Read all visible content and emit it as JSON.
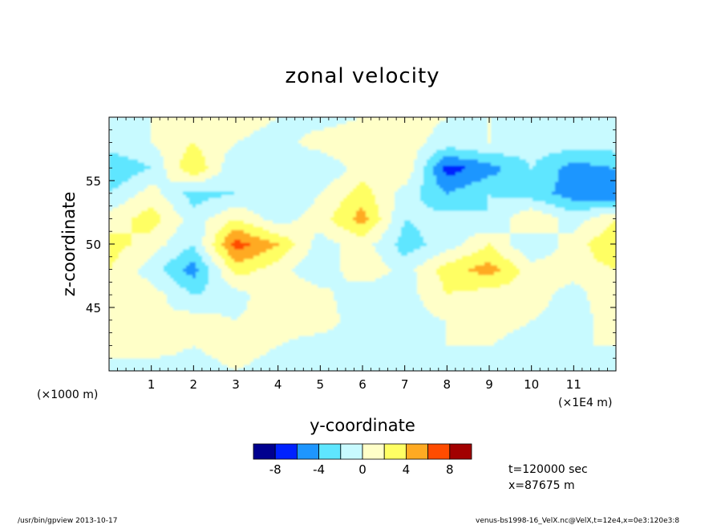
{
  "chart_data": {
    "type": "heatmap",
    "title": "zonal velocity",
    "xlabel": "y-coordinate",
    "ylabel": "z-coordinate",
    "x_unit_note": "(×1E4 m)",
    "y_unit_note": "(×1000 m)",
    "xlim": [
      0,
      12
    ],
    "ylim": [
      40,
      60
    ],
    "x_ticks": [
      1,
      2,
      3,
      4,
      5,
      6,
      7,
      8,
      9,
      10,
      11
    ],
    "y_ticks": [
      45,
      50,
      55
    ],
    "grid": false,
    "colorbar": {
      "levels": [
        -10,
        -8,
        -6,
        -4,
        -2,
        0,
        2,
        4,
        6,
        8,
        10
      ],
      "colors": [
        "#00008f",
        "#0022ff",
        "#1e96ff",
        "#5fe6ff",
        "#c8faff",
        "#ffffc8",
        "#ffff64",
        "#ffaa22",
        "#ff4c00",
        "#a20000"
      ],
      "tick_labels": [
        "-8",
        "-4",
        "0",
        "4",
        "8"
      ],
      "tick_values": [
        -8,
        -4,
        0,
        4,
        8
      ]
    },
    "field": {
      "description_note": "",
      "nx": 13,
      "nz": 11,
      "y_values_1e4m": [
        0,
        1,
        2,
        3,
        4,
        5,
        6,
        7,
        8,
        9,
        10,
        11,
        12
      ],
      "z_values_1000m": [
        40,
        42,
        44,
        46,
        48,
        50,
        52,
        54,
        56,
        58,
        60
      ],
      "values": [
        [
          0,
          -1,
          -1,
          0,
          -1,
          -1,
          -1,
          -1,
          -1,
          -1,
          -1,
          -1,
          0
        ],
        [
          0,
          1,
          0,
          1,
          0,
          -1,
          -1,
          -1,
          0,
          0,
          -1,
          0,
          0
        ],
        [
          1,
          0,
          1,
          0,
          1,
          1,
          -1,
          -1,
          0,
          1,
          0,
          -1,
          1
        ],
        [
          1,
          1,
          -2,
          -1,
          2,
          1,
          -2,
          -1,
          2,
          1,
          1,
          -1,
          2
        ],
        [
          2,
          -1,
          -5,
          3,
          1,
          -2,
          2,
          -1,
          3,
          5,
          1,
          1,
          2
        ],
        [
          3,
          1,
          -2,
          7,
          4,
          -1,
          1,
          -3,
          -1,
          2,
          -2,
          1,
          4
        ],
        [
          1,
          3,
          -1,
          2,
          -1,
          1,
          5,
          -2,
          -1,
          -2,
          2,
          -1,
          2
        ],
        [
          -2,
          1,
          -3,
          -2,
          -2,
          0,
          3,
          -1,
          -4,
          -2,
          -3,
          -5,
          -6
        ],
        [
          -4,
          -2,
          4,
          -2,
          -1,
          -2,
          1,
          2,
          -7,
          -5,
          -2,
          -5,
          -4
        ],
        [
          -1,
          0,
          2,
          0,
          -1,
          1,
          2,
          1,
          -1,
          0,
          -1,
          -1,
          -1
        ],
        [
          -1,
          0,
          0,
          1,
          0,
          -1,
          0,
          1,
          0,
          0,
          0,
          -1,
          -1
        ]
      ]
    }
  },
  "info": {
    "time": "t=120000 sec",
    "position": "x=87675 m"
  },
  "footer": {
    "left": "/usr/bin/gpview   2013-10-17",
    "right": "venus-bs1998-16_VelX.nc@VelX,t=12e4,x=0e3:120e3:8"
  }
}
